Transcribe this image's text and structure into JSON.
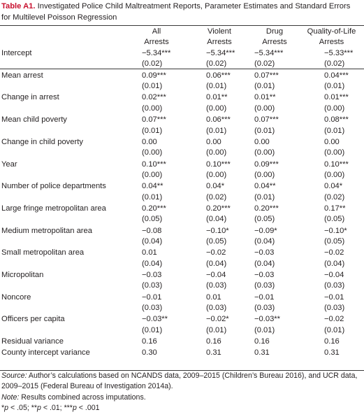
{
  "caption": {
    "label": "Table A1.",
    "text": " Investigated Police Child Maltreatment Reports, Parameter Estimates and Standard Errors for Multilevel Poisson Regression"
  },
  "header": [
    {
      "line1": "All",
      "line2": "Arrests"
    },
    {
      "line1": "Violent",
      "line2": "Arrests"
    },
    {
      "line1": "Drug",
      "line2": "Arrests"
    },
    {
      "line1": "Quality-of-Life",
      "line2": "Arrests"
    }
  ],
  "rows": [
    {
      "label": "Intercept",
      "est": [
        "−5.34***",
        "−5.34***",
        "−5.34***",
        "−5.33***"
      ],
      "se": [
        "(0.02)",
        "(0.02)",
        "(0.02)",
        "(0.02)"
      ]
    },
    {
      "label": "Mean arrest",
      "est": [
        "0.09***",
        "0.06***",
        "0.07***",
        "0.04***"
      ],
      "se": [
        "(0.01)",
        "(0.01)",
        "(0.01)",
        "(0.01)"
      ]
    },
    {
      "label": "Change in arrest",
      "est": [
        "0.02***",
        "0.01**",
        "0.01**",
        "0.01***"
      ],
      "se": [
        "(0.00)",
        "(0.00)",
        "(0.00)",
        "(0.00)"
      ]
    },
    {
      "label": "Mean child poverty",
      "est": [
        "0.07***",
        "0.06***",
        "0.07***",
        "0.08***"
      ],
      "se": [
        "(0.01)",
        "(0.01)",
        "(0.01)",
        "(0.01)"
      ]
    },
    {
      "label": "Change in child poverty",
      "est": [
        "0.00",
        "0.00",
        "0.00",
        "0.00"
      ],
      "se": [
        "(0.00)",
        "(0.00)",
        "(0.00)",
        "(0.00)"
      ]
    },
    {
      "label": "Year",
      "est": [
        "0.10***",
        "0.10***",
        "0.09***",
        "0.10***"
      ],
      "se": [
        "(0.00)",
        "(0.00)",
        "(0.00)",
        "(0.00)"
      ]
    },
    {
      "label": "Number of police departments",
      "est": [
        "0.04**",
        "0.04*",
        "0.04**",
        "0.04*"
      ],
      "se": [
        "(0.01)",
        "(0.02)",
        "(0.01)",
        "(0.02)"
      ]
    },
    {
      "label": "Large fringe metropolitan area",
      "est": [
        "0.20***",
        "0.20***",
        "0.20***",
        "0.17**"
      ],
      "se": [
        "(0.05)",
        "(0.04)",
        "(0.05)",
        "(0.05)"
      ]
    },
    {
      "label": "Medium metropolitan area",
      "est": [
        "−0.08",
        "−0.10*",
        "−0.09*",
        "−0.10*"
      ],
      "se": [
        "(0.04)",
        "(0.05)",
        "(0.04)",
        "(0.05)"
      ]
    },
    {
      "label": "Small metropolitan area",
      "est": [
        "0.01",
        "−0.02",
        "−0.03",
        "−0.02"
      ],
      "se": [
        "(0.04)",
        "(0.04)",
        "(0.04)",
        "(0.04)"
      ]
    },
    {
      "label": "Micropolitan",
      "est": [
        "−0.03",
        "−0.04",
        "−0.03",
        "−0.04"
      ],
      "se": [
        "(0.03)",
        "(0.03)",
        "(0.03)",
        "(0.03)"
      ]
    },
    {
      "label": "Noncore",
      "est": [
        "−0.01",
        "0.01",
        "−0.01",
        "−0.01"
      ],
      "se": [
        "(0.03)",
        "(0.03)",
        "(0.03)",
        "(0.03)"
      ]
    },
    {
      "label": "Officers per capita",
      "est": [
        "−0.03**",
        "−0.02*",
        "−0.03**",
        "−0.02"
      ],
      "se": [
        "(0.01)",
        "(0.01)",
        "(0.01)",
        "(0.01)"
      ]
    }
  ],
  "variance_rows": [
    {
      "label": "Residual variance",
      "vals": [
        "0.16",
        "0.16",
        "0.16",
        "0.16"
      ]
    },
    {
      "label": "County intercept variance",
      "vals": [
        "0.30",
        "0.31",
        "0.31",
        "0.31"
      ]
    }
  ],
  "notes": {
    "source_label": "Source:",
    "source_text": " Author’s calculations based on NCANDS data, 2009–2015 (Children’s Bureau 2016), and UCR data, 2009–2015 (Federal Bureau of Investigation 2014a).",
    "note_label": "Note:",
    "note_text": " Results combined across imputations.",
    "sig": [
      {
        "sym": "*",
        "p": "p",
        "txt": " < .05; "
      },
      {
        "sym": "**",
        "p": "p",
        "txt": " < .01; "
      },
      {
        "sym": "***",
        "p": "p",
        "txt": " < .001"
      }
    ]
  }
}
